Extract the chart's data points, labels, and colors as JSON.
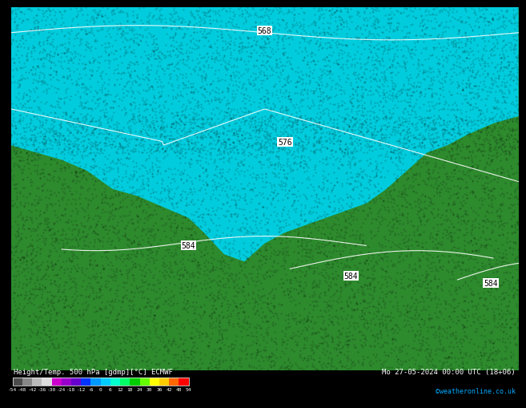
{
  "title_left": "Height/Temp. 500 hPa [gdmp][°C] ECMWF",
  "title_right": "Mo 27-05-2024 00:00 UTC (18+06)",
  "copyright": "©weatheronline.co.uk",
  "colorbar_ticks": [
    -54,
    -48,
    -42,
    -36,
    -30,
    -24,
    -18,
    -12,
    -6,
    0,
    6,
    12,
    18,
    24,
    30,
    36,
    42,
    48,
    54
  ],
  "colorbar_colors": [
    "#4d4d4d",
    "#7f7f7f",
    "#b0b0b0",
    "#e0e0e0",
    "#cc00cc",
    "#9900cc",
    "#6600cc",
    "#0000ff",
    "#0066ff",
    "#00ccff",
    "#00ffcc",
    "#00ff66",
    "#00cc00",
    "#66ff00",
    "#ccff00",
    "#ffff00",
    "#ffcc00",
    "#ff6600",
    "#ff0000",
    "#cc0000"
  ],
  "bg_color": "#1a1a1a",
  "map_green": "#2d8a2d",
  "map_cyan": "#00ccdd",
  "contour_label_568": "568",
  "contour_label_576": "576",
  "contour_label_584a": "584",
  "contour_label_584b": "584",
  "contour_label_584c": "584",
  "font_color_bottom": "#ffffff",
  "bottom_bar_color": "#000000"
}
